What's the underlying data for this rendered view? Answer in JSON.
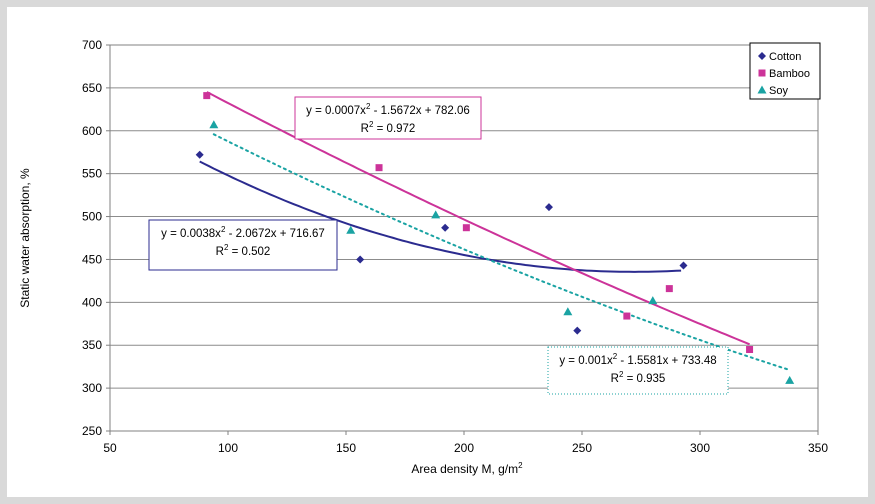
{
  "chart_data": {
    "type": "scatter",
    "xlabel": "Area density M, g/m",
    "xlabel_sup": "2",
    "ylabel": "Static water absorption, %",
    "xlim": [
      50,
      350
    ],
    "ylim": [
      250,
      700
    ],
    "xticks": [
      50,
      100,
      150,
      200,
      250,
      300,
      350
    ],
    "yticks": [
      250,
      300,
      350,
      400,
      450,
      500,
      550,
      600,
      650,
      700
    ],
    "grid": "horizontal",
    "legend_position": "top-right",
    "series": [
      {
        "name": "Cotton",
        "marker": "diamond",
        "color": "#2b2b8f",
        "points": [
          [
            88,
            572
          ],
          [
            156,
            450
          ],
          [
            192,
            487
          ],
          [
            236,
            511
          ],
          [
            248,
            367
          ],
          [
            293,
            443
          ]
        ],
        "trend": {
          "coeffs": [
            0.0038,
            -2.0672,
            716.67
          ],
          "range": [
            88,
            293
          ],
          "color": "#2b2b8f",
          "style": "solid",
          "eq_prefix": "y = 0.0038x",
          "eq_sup": "2",
          "eq_suffix": " - 2.0672x + 716.67",
          "r2_label": "R",
          "r2_sup": "2",
          "r2_value": " = 0.502"
        }
      },
      {
        "name": "Bamboo",
        "marker": "square",
        "color": "#cc3399",
        "points": [
          [
            91,
            641
          ],
          [
            164,
            557
          ],
          [
            201,
            487
          ],
          [
            269,
            384
          ],
          [
            287,
            416
          ],
          [
            321,
            345
          ]
        ],
        "trend": {
          "coeffs": [
            0.0007,
            -1.5672,
            782.06
          ],
          "range": [
            91,
            321
          ],
          "color": "#cc3399",
          "style": "solid",
          "eq_prefix": "y = 0.0007x",
          "eq_sup": "2",
          "eq_suffix": " - 1.5672x + 782.06",
          "r2_label": "R",
          "r2_sup": "2",
          "r2_value": "  = 0.972"
        }
      },
      {
        "name": "Soy",
        "marker": "triangle",
        "color": "#1aa3a3",
        "points": [
          [
            94,
            607
          ],
          [
            152,
            484
          ],
          [
            188,
            502
          ],
          [
            244,
            389
          ],
          [
            280,
            402
          ],
          [
            338,
            309
          ]
        ],
        "trend": {
          "coeffs": [
            0.001,
            -1.5581,
            733.48
          ],
          "range": [
            94,
            338
          ],
          "color": "#1aa3a3",
          "style": "dotted",
          "eq_prefix": "y = 0.001x",
          "eq_sup": "2",
          "eq_suffix": " - 1.5581x + 733.48",
          "r2_label": "R",
          "r2_sup": "2",
          "r2_value": " = 0.935"
        }
      }
    ]
  }
}
